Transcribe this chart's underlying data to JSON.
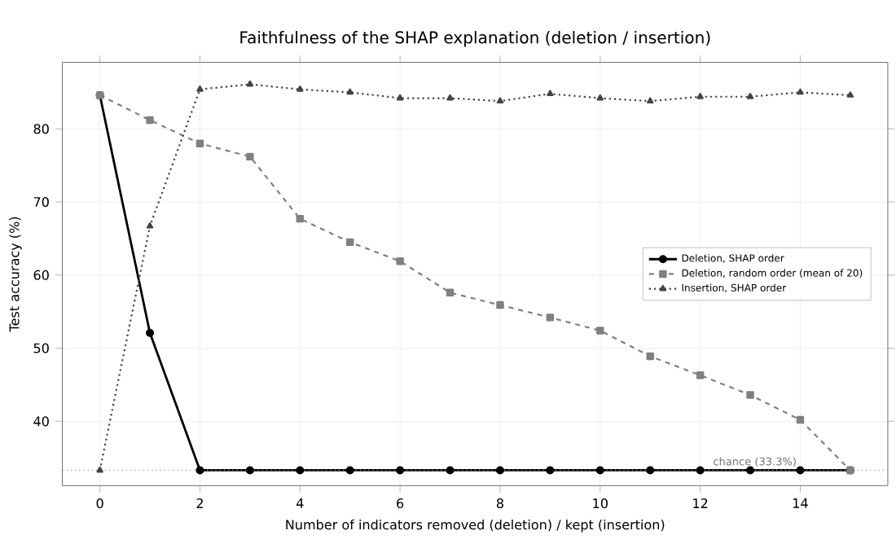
{
  "chart_data": {
    "type": "line",
    "title": "Faithfulness of the SHAP explanation (deletion / insertion)",
    "xlabel": "Number of indicators removed (deletion) / kept (insertion)",
    "ylabel": "Test accuracy (%)",
    "x": [
      0,
      1,
      2,
      3,
      4,
      5,
      6,
      7,
      8,
      9,
      10,
      11,
      12,
      13,
      14,
      15
    ],
    "series": [
      {
        "name": "Deletion, SHAP order",
        "color": "#000000",
        "marker": "circle",
        "line_style": "solid",
        "values": [
          84.6,
          52.1,
          33.3,
          33.3,
          33.3,
          33.3,
          33.3,
          33.3,
          33.3,
          33.3,
          33.3,
          33.3,
          33.3,
          33.3,
          33.3,
          33.3
        ]
      },
      {
        "name": "Deletion, random order (mean of 20)",
        "color": "#808080",
        "marker": "square",
        "line_style": "dashed",
        "values": [
          84.6,
          81.2,
          78.0,
          76.2,
          67.7,
          64.5,
          61.9,
          57.6,
          55.9,
          54.2,
          52.4,
          48.9,
          46.3,
          43.6,
          40.2,
          33.3
        ]
      },
      {
        "name": "Insertion, SHAP order",
        "color": "#444444",
        "marker": "triangle",
        "line_style": "dotted",
        "values": [
          33.3,
          66.7,
          85.4,
          86.1,
          85.4,
          85.0,
          84.2,
          84.2,
          83.8,
          84.8,
          84.2,
          83.8,
          84.4,
          84.4,
          85.0,
          84.6
        ]
      }
    ],
    "xlim": [
      -0.75,
      15.75
    ],
    "ylim": [
      31.2,
      89.1
    ],
    "xticks": [
      0,
      2,
      4,
      6,
      8,
      10,
      12,
      14
    ],
    "yticks": [
      40,
      50,
      60,
      70,
      80
    ],
    "ref_lines": [
      {
        "axis": "y",
        "value": 33.3,
        "label": "chance (33.3%)",
        "color": "#999999",
        "line_style": "dotted"
      }
    ],
    "grid": true,
    "legend": "right"
  }
}
